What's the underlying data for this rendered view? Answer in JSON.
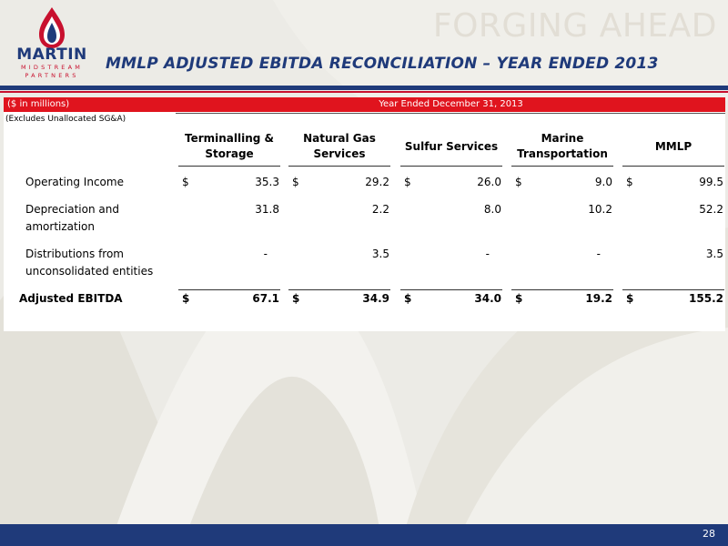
{
  "header": {
    "logo_word": "MARTIN",
    "logo_line1": "MIDSTREAM",
    "logo_line2": "PARTNERS",
    "tagline": "FORGING AHEAD",
    "title": "MMLP ADJUSTED EBITDA RECONCILIATION – YEAR ENDED 2013"
  },
  "table": {
    "unit_label": "($ in millions)",
    "period_label": "Year Ended December 31, 2013",
    "note": "(Excludes Unallocated SG&A)",
    "columns": [
      {
        "line1": "Terminalling &",
        "line2": "Storage"
      },
      {
        "line1": "Natural Gas",
        "line2": "Services"
      },
      {
        "line1": "Sulfur Services",
        "line2": ""
      },
      {
        "line1": "Marine",
        "line2": "Transportation"
      },
      {
        "line1": "MMLP",
        "line2": ""
      }
    ],
    "rows": [
      {
        "label1": "Operating Income",
        "label2": "",
        "dollar": "$",
        "values": [
          "35.3",
          "29.2",
          "26.0",
          "9.0",
          "99.5"
        ]
      },
      {
        "label1": "Depreciation and",
        "label2": "amortization",
        "dollar": "",
        "values": [
          "31.8",
          "2.2",
          "8.0",
          "10.2",
          "52.2"
        ]
      },
      {
        "label1": "Distributions from",
        "label2": "unconsolidated entities",
        "dollar": "",
        "values": [
          "-",
          "3.5",
          "-",
          "-",
          "3.5"
        ]
      },
      {
        "label1": "Adjusted EBITDA",
        "label2": "",
        "dollar": "$",
        "values": [
          "67.1",
          "34.9",
          "34.0",
          "19.2",
          "155.2"
        ]
      }
    ]
  },
  "footer": {
    "page_number": "28"
  },
  "colors": {
    "brand_blue": "#1f3a7a",
    "brand_red": "#c8102e",
    "header_red": "#e0141e"
  }
}
